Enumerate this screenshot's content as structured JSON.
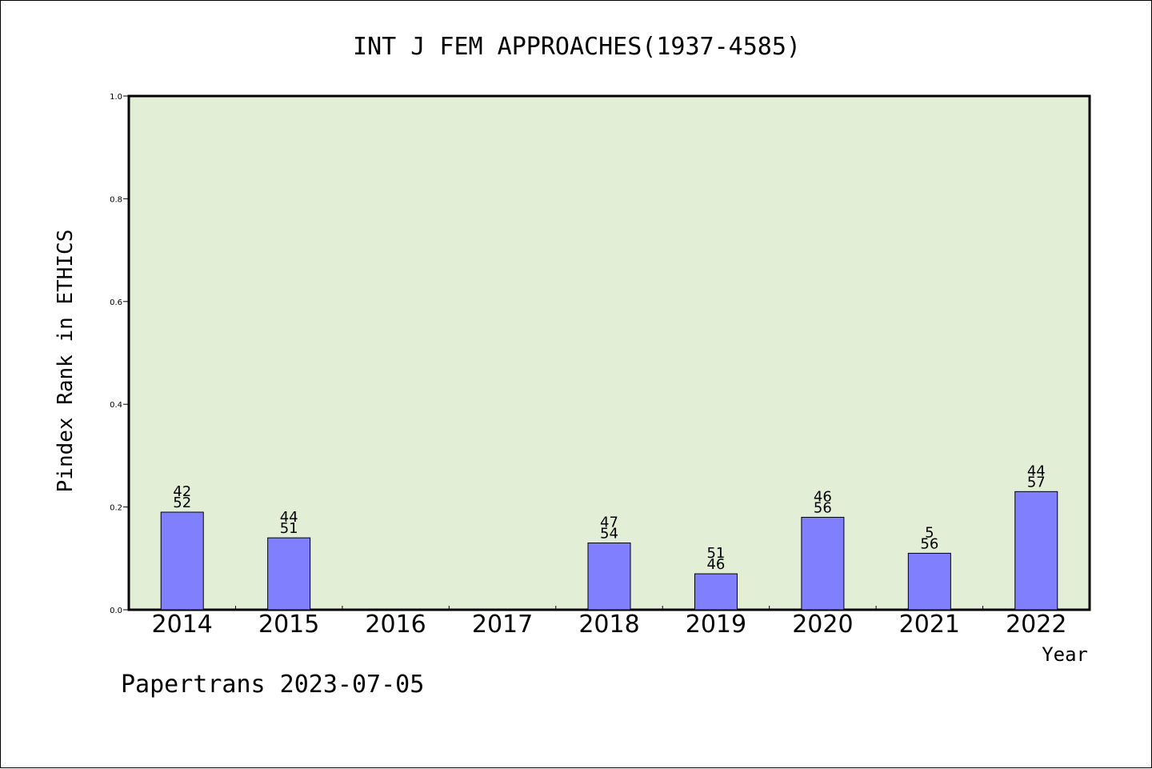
{
  "chart_data": {
    "type": "bar",
    "title": "INT J FEM APPROACHES(1937-4585)",
    "xlabel": "Year",
    "ylabel": "Pindex Rank in ETHICS",
    "ylim": [
      0,
      1.0
    ],
    "yticks": [
      "0.0",
      "0.2",
      "0.4",
      "0.6",
      "0.8",
      "1.0"
    ],
    "categories": [
      "2014",
      "2015",
      "2016",
      "2017",
      "2018",
      "2019",
      "2020",
      "2021",
      "2022"
    ],
    "values": [
      0.19,
      0.14,
      null,
      null,
      0.13,
      0.07,
      0.18,
      0.11,
      0.23
    ],
    "bar_labels": [
      [
        "42",
        "52"
      ],
      [
        "44",
        "51"
      ],
      null,
      null,
      [
        "47",
        "54"
      ],
      [
        "51",
        "46"
      ],
      [
        "46",
        "56"
      ],
      [
        "5",
        "56"
      ],
      [
        "44",
        "57"
      ]
    ],
    "grid": false,
    "colors": {
      "plot_bg": "#e2efd6",
      "bar": "#8080ff",
      "axis": "#000000"
    }
  },
  "footer": "Papertrans 2023-07-05"
}
